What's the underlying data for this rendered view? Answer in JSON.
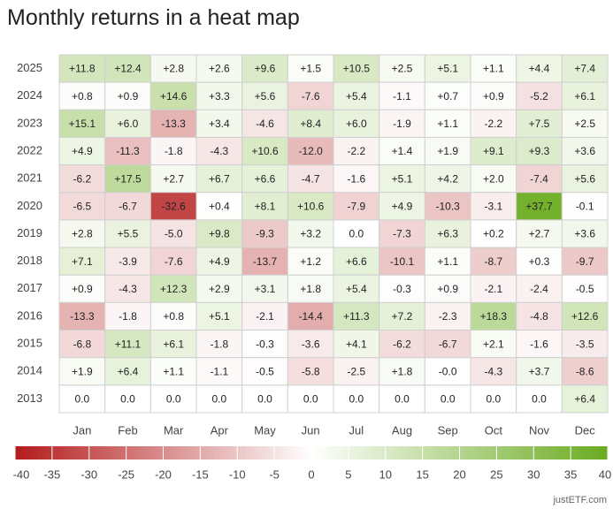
{
  "chart_data": {
    "type": "heatmap",
    "title": "Monthly returns in a heat map",
    "x_categories": [
      "Jan",
      "Feb",
      "Mar",
      "Apr",
      "May",
      "Jun",
      "Jul",
      "Aug",
      "Sep",
      "Oct",
      "Nov",
      "Dec"
    ],
    "y_categories": [
      "2025",
      "2024",
      "2023",
      "2022",
      "2021",
      "2020",
      "2019",
      "2018",
      "2017",
      "2016",
      "2015",
      "2014",
      "2013"
    ],
    "values": [
      [
        11.8,
        12.4,
        2.8,
        2.6,
        9.6,
        1.5,
        10.5,
        2.5,
        5.1,
        1.1,
        4.4,
        7.4
      ],
      [
        0.8,
        0.9,
        14.6,
        3.3,
        5.6,
        -7.6,
        5.4,
        -1.1,
        0.7,
        0.9,
        -5.2,
        6.1
      ],
      [
        15.1,
        6.0,
        -13.3,
        3.4,
        -4.6,
        8.4,
        6.0,
        -1.9,
        1.1,
        -2.2,
        7.5,
        2.5
      ],
      [
        4.9,
        -11.3,
        -1.8,
        -4.3,
        10.6,
        -12.0,
        -2.2,
        1.4,
        1.9,
        9.1,
        9.3,
        3.6
      ],
      [
        -6.2,
        17.5,
        2.7,
        6.7,
        6.6,
        -4.7,
        -1.6,
        5.1,
        4.2,
        2.0,
        -7.4,
        5.6
      ],
      [
        -6.5,
        -6.7,
        -32.6,
        0.4,
        8.1,
        10.6,
        -7.9,
        4.9,
        -10.3,
        -3.1,
        37.7,
        -0.1
      ],
      [
        2.8,
        5.5,
        -5.0,
        9.8,
        -9.3,
        3.2,
        0.0,
        -7.3,
        6.3,
        0.2,
        2.7,
        3.6
      ],
      [
        7.1,
        -3.9,
        -7.6,
        4.9,
        -13.7,
        1.2,
        6.6,
        -10.1,
        1.1,
        -8.7,
        0.3,
        -9.7
      ],
      [
        0.9,
        -4.3,
        12.3,
        2.9,
        3.1,
        1.8,
        5.4,
        -0.3,
        0.9,
        -2.1,
        -2.4,
        -0.5
      ],
      [
        -13.3,
        -1.8,
        0.8,
        5.1,
        -2.1,
        -14.4,
        11.3,
        7.2,
        -2.3,
        18.3,
        -4.8,
        12.6
      ],
      [
        -6.8,
        11.1,
        6.1,
        -1.8,
        -0.3,
        -3.6,
        4.1,
        -6.2,
        -6.7,
        2.1,
        -1.6,
        -3.5
      ],
      [
        1.9,
        6.4,
        1.1,
        -1.1,
        -0.5,
        -5.8,
        -2.5,
        1.8,
        0.0,
        -4.3,
        3.7,
        -8.6
      ],
      [
        0.0,
        0.0,
        0.0,
        0.0,
        0.0,
        0.0,
        0.0,
        0.0,
        0.0,
        0.0,
        0.0,
        6.4
      ]
    ],
    "value_labels": [
      [
        "+11.8",
        "+12.4",
        "+2.8",
        "+2.6",
        "+9.6",
        "+1.5",
        "+10.5",
        "+2.5",
        "+5.1",
        "+1.1",
        "+4.4",
        "+7.4"
      ],
      [
        "+0.8",
        "+0.9",
        "+14.6",
        "+3.3",
        "+5.6",
        "-7.6",
        "+5.4",
        "-1.1",
        "+0.7",
        "+0.9",
        "-5.2",
        "+6.1"
      ],
      [
        "+15.1",
        "+6.0",
        "-13.3",
        "+3.4",
        "-4.6",
        "+8.4",
        "+6.0",
        "-1.9",
        "+1.1",
        "-2.2",
        "+7.5",
        "+2.5"
      ],
      [
        "+4.9",
        "-11.3",
        "-1.8",
        "-4.3",
        "+10.6",
        "-12.0",
        "-2.2",
        "+1.4",
        "+1.9",
        "+9.1",
        "+9.3",
        "+3.6"
      ],
      [
        "-6.2",
        "+17.5",
        "+2.7",
        "+6.7",
        "+6.6",
        "-4.7",
        "-1.6",
        "+5.1",
        "+4.2",
        "+2.0",
        "-7.4",
        "+5.6"
      ],
      [
        "-6.5",
        "-6.7",
        "-32.6",
        "+0.4",
        "+8.1",
        "+10.6",
        "-7.9",
        "+4.9",
        "-10.3",
        "-3.1",
        "+37.7",
        "-0.1"
      ],
      [
        "+2.8",
        "+5.5",
        "-5.0",
        "+9.8",
        "-9.3",
        "+3.2",
        "0.0",
        "-7.3",
        "+6.3",
        "+0.2",
        "+2.7",
        "+3.6"
      ],
      [
        "+7.1",
        "-3.9",
        "-7.6",
        "+4.9",
        "-13.7",
        "+1.2",
        "+6.6",
        "-10.1",
        "+1.1",
        "-8.7",
        "+0.3",
        "-9.7"
      ],
      [
        "+0.9",
        "-4.3",
        "+12.3",
        "+2.9",
        "+3.1",
        "+1.8",
        "+5.4",
        "-0.3",
        "+0.9",
        "-2.1",
        "-2.4",
        "-0.5"
      ],
      [
        "-13.3",
        "-1.8",
        "+0.8",
        "+5.1",
        "-2.1",
        "-14.4",
        "+11.3",
        "+7.2",
        "-2.3",
        "+18.3",
        "-4.8",
        "+12.6"
      ],
      [
        "-6.8",
        "+11.1",
        "+6.1",
        "-1.8",
        "-0.3",
        "-3.6",
        "+4.1",
        "-6.2",
        "-6.7",
        "+2.1",
        "-1.6",
        "-3.5"
      ],
      [
        "+1.9",
        "+6.4",
        "+1.1",
        "-1.1",
        "-0.5",
        "-5.8",
        "-2.5",
        "+1.8",
        "-0.0",
        "-4.3",
        "+3.7",
        "-8.6"
      ],
      [
        "0.0",
        "0.0",
        "0.0",
        "0.0",
        "0.0",
        "0.0",
        "0.0",
        "0.0",
        "0.0",
        "0.0",
        "0.0",
        "+6.4"
      ]
    ],
    "clim": [
      -40,
      40
    ],
    "cticks": [
      -40,
      -35,
      -30,
      -25,
      -20,
      -15,
      -10,
      -5,
      0,
      5,
      10,
      15,
      20,
      25,
      30,
      35,
      40
    ],
    "colors": {
      "negative": "#b31b1b",
      "zero": "#ffffff",
      "positive": "#6aab1f"
    },
    "source": "justETF.com"
  }
}
